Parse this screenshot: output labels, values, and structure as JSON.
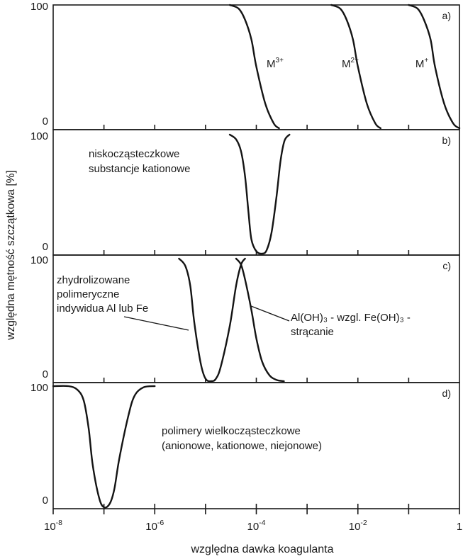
{
  "chart_data": {
    "type": "line",
    "xlabel": "względna dawka koagulanta",
    "ylabel": "względna mętność szczątkowa [%]",
    "x_scale": "log",
    "xlim": [
      1e-08,
      1
    ],
    "x_tick_labels": [
      {
        "value": 1e-08,
        "base": "10",
        "exp": "-8"
      },
      {
        "value": 1e-06,
        "base": "10",
        "exp": "-6"
      },
      {
        "value": 0.0001,
        "base": "10",
        "exp": "-4"
      },
      {
        "value": 0.01,
        "base": "10",
        "exp": "-2"
      },
      {
        "value": 1,
        "base": "1",
        "exp": ""
      }
    ],
    "panels": [
      {
        "id": "a",
        "label": "a)",
        "ylim": [
          0,
          100
        ],
        "y_ticks": [
          "100",
          "0"
        ],
        "annotations": [],
        "series": [
          {
            "label_base": "M",
            "label_sup": "3+",
            "x": [
              3e-05,
              4.5e-05,
              6e-05,
              8e-05,
              0.0001,
              0.00015,
              0.00022,
              0.00028
            ],
            "y": [
              100,
              97,
              88,
              72,
              50,
              20,
              4,
              0
            ]
          },
          {
            "label_base": "M",
            "label_sup": "2+",
            "x": [
              0.003,
              0.0045,
              0.006,
              0.008,
              0.01,
              0.015,
              0.022,
              0.028
            ],
            "y": [
              100,
              97,
              88,
              72,
              50,
              20,
              4,
              0
            ]
          },
          {
            "label_base": "M",
            "label_sup": "+",
            "x": [
              0.1,
              0.15,
              0.2,
              0.27,
              0.33,
              0.5,
              0.75,
              1.0
            ],
            "y": [
              100,
              97,
              88,
              72,
              50,
              20,
              4,
              0
            ]
          }
        ]
      },
      {
        "id": "b",
        "label": "b)",
        "ylim": [
          0,
          100
        ],
        "y_ticks": [
          "100",
          "0"
        ],
        "annotations": [
          {
            "lines": [
              "niskocząsteczkowe",
              "substancje kationowe"
            ]
          }
        ],
        "series": [
          {
            "x": [
              3e-05,
              4e-05,
              5e-05,
              6e-05,
              7e-05,
              8e-05,
              0.0001,
              0.00013,
              0.00016,
              0.0002,
              0.00025,
              0.0003,
              0.00036,
              0.00045
            ],
            "y": [
              100,
              96,
              86,
              65,
              35,
              12,
              2,
              0,
              3,
              18,
              48,
              78,
              95,
              100
            ]
          }
        ]
      },
      {
        "id": "c",
        "label": "c)",
        "ylim": [
          0,
          100
        ],
        "y_ticks": [
          "100",
          "0"
        ],
        "annotations": [
          {
            "lines": [
              "zhydrolizowane",
              "polimeryczne",
              "indywidua Al lub Fe"
            ]
          },
          {
            "lines": [
              "Al(OH)₃ - wzgl. Fe(OH)₃ -",
              "strącanie"
            ]
          }
        ],
        "series": [
          {
            "x": [
              3e-06,
              4e-06,
              5e-06,
              6e-06,
              8e-06,
              1e-05,
              1.3e-05,
              1.6e-05,
              2e-05,
              3e-05,
              4e-05,
              5e-05,
              6e-05
            ],
            "y": [
              100,
              94,
              78,
              48,
              15,
              2,
              0,
              2,
              12,
              45,
              78,
              95,
              100
            ]
          },
          {
            "x": [
              4e-05,
              5e-05,
              6e-05,
              8e-05,
              0.0001,
              0.00013,
              0.00018,
              0.00025,
              0.00035
            ],
            "y": [
              100,
              95,
              83,
              58,
              35,
              16,
              5,
              1,
              0
            ]
          }
        ]
      },
      {
        "id": "d",
        "label": "d)",
        "ylim": [
          0,
          100
        ],
        "y_ticks": [
          "100",
          "0"
        ],
        "annotations": [
          {
            "lines": [
              "polimery wielkocząsteczkowe",
              "(anionowe, kationowe, niejonowe)"
            ]
          }
        ],
        "series": [
          {
            "x": [
              1e-08,
              2e-08,
              3e-08,
              4e-08,
              5e-08,
              6e-08,
              8e-08,
              1e-07,
              1.3e-07,
              1.6e-07,
              2e-07,
              3e-07,
              4e-07,
              6e-07,
              1e-06
            ],
            "y": [
              100,
              100,
              97,
              88,
              65,
              35,
              8,
              0,
              3,
              15,
              40,
              75,
              92,
              99,
              100
            ]
          }
        ]
      }
    ]
  }
}
